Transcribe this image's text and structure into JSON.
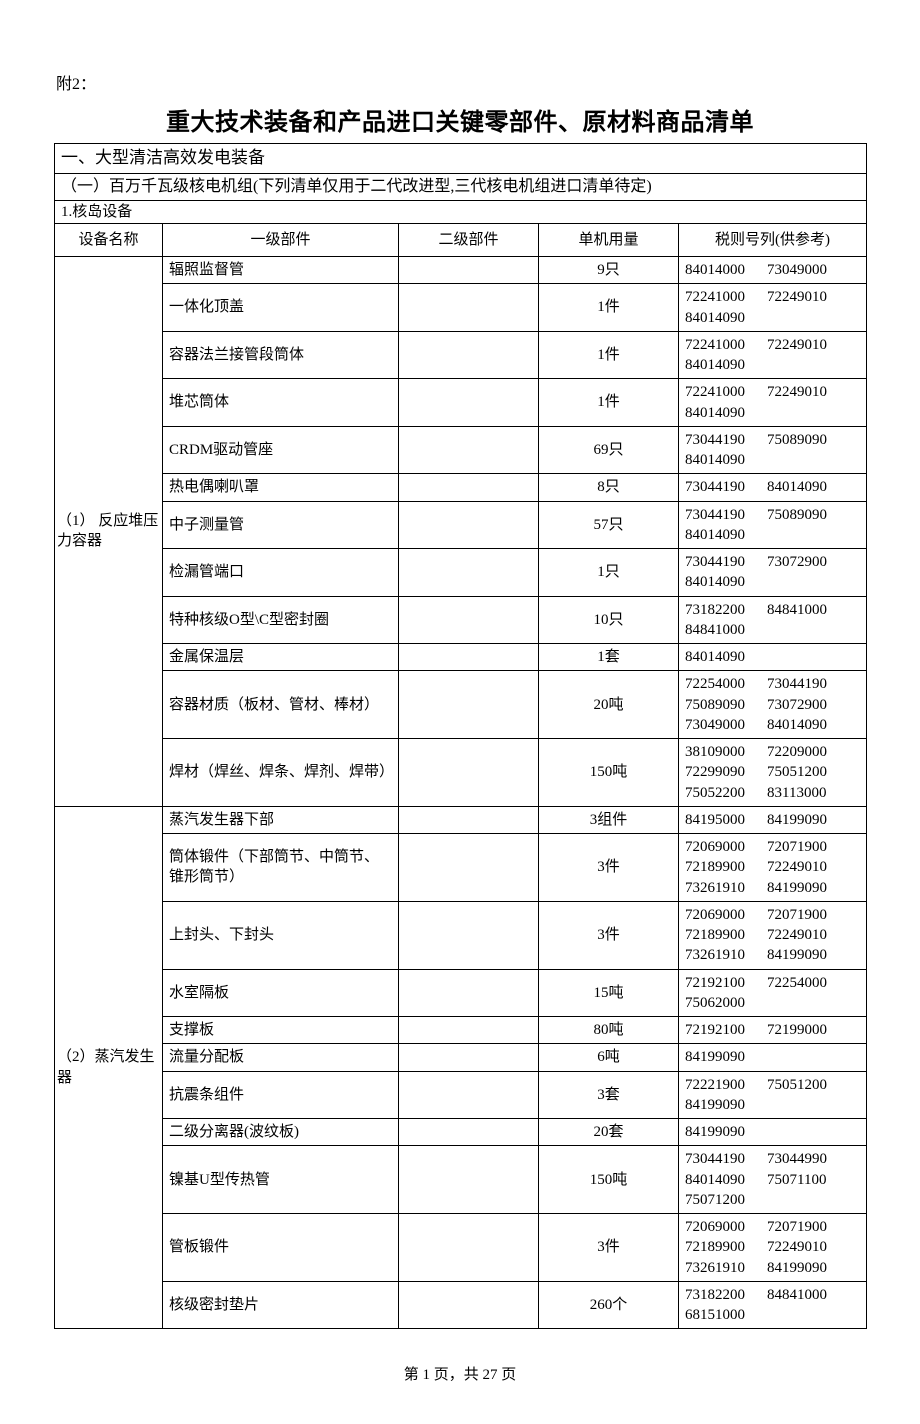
{
  "appendix_label": "附2：",
  "title": "重大技术装备和产品进口关键零部件、原材料商品清单",
  "section": "一、大型清洁高效发电装备",
  "subsection": "（一）百万千瓦级核电机组(下列清单仅用于二代改进型,三代核电机组进口清单待定)",
  "category": "1.核岛设备",
  "columns": {
    "c1": "设备名称",
    "c2": "一级部件",
    "c3": "二级部件",
    "c4": "单机用量",
    "c5": "税则号列(供参考)"
  },
  "groups": [
    {
      "equip_name": "（1）  反应堆压力容器",
      "rows": [
        {
          "part": "辐照监督管",
          "sub": "",
          "qty": "9只",
          "codes": [
            "84014000",
            "73049000"
          ]
        },
        {
          "part": "一体化顶盖",
          "sub": "",
          "qty": "1件",
          "codes": [
            "72241000",
            "72249010",
            "84014090"
          ]
        },
        {
          "part": "容器法兰接管段筒体",
          "sub": "",
          "qty": "1件",
          "codes": [
            "72241000",
            "72249010",
            "84014090"
          ]
        },
        {
          "part": "堆芯筒体",
          "sub": "",
          "qty": "1件",
          "codes": [
            "72241000",
            "72249010",
            "84014090"
          ]
        },
        {
          "part": "CRDM驱动管座",
          "sub": "",
          "qty": "69只",
          "codes": [
            "73044190",
            "75089090",
            "84014090"
          ]
        },
        {
          "part": "热电偶喇叭罩",
          "sub": "",
          "qty": "8只",
          "codes": [
            "73044190",
            "84014090"
          ]
        },
        {
          "part": "中子测量管",
          "sub": "",
          "qty": "57只",
          "codes": [
            "73044190",
            "75089090",
            "84014090"
          ]
        },
        {
          "part": "检漏管端口",
          "sub": "",
          "qty": "1只",
          "codes": [
            "73044190",
            "73072900",
            "84014090"
          ]
        },
        {
          "part": "特种核级O型\\C型密封圈",
          "sub": "",
          "qty": "10只",
          "codes": [
            "73182200",
            "84841000",
            "84841000"
          ]
        },
        {
          "part": "金属保温层",
          "sub": "",
          "qty": "1套",
          "codes": [
            "84014090"
          ]
        },
        {
          "part": "容器材质（板材、管材、棒材）",
          "sub": "",
          "qty": "20吨",
          "codes": [
            "72254000",
            "73044190",
            "75089090",
            "73072900",
            "73049000",
            "84014090"
          ]
        },
        {
          "part": "焊材（焊丝、焊条、焊剂、焊带）",
          "sub": "",
          "qty": "150吨",
          "codes": [
            "38109000",
            "72209000",
            "72299090",
            "75051200",
            "75052200",
            "83113000"
          ]
        }
      ]
    },
    {
      "equip_name": "（2）蒸汽发生器",
      "rows": [
        {
          "part": "蒸汽发生器下部",
          "sub": "",
          "qty": "3组件",
          "codes": [
            "84195000",
            "84199090"
          ]
        },
        {
          "part": "筒体锻件（下部筒节、中筒节、锥形筒节）",
          "sub": "",
          "qty": "3件",
          "codes": [
            "72069000",
            "72071900",
            "72189900",
            "72249010",
            "73261910",
            "84199090"
          ]
        },
        {
          "part": "上封头、下封头",
          "sub": "",
          "qty": "3件",
          "codes": [
            "72069000",
            "72071900",
            "72189900",
            "72249010",
            "73261910",
            "84199090"
          ]
        },
        {
          "part": "水室隔板",
          "sub": "",
          "qty": "15吨",
          "codes": [
            "72192100",
            "72254000",
            "75062000"
          ]
        },
        {
          "part": "支撑板",
          "sub": "",
          "qty": "80吨",
          "codes": [
            "72192100",
            "72199000"
          ]
        },
        {
          "part": "流量分配板",
          "sub": "",
          "qty": "6吨",
          "codes": [
            "84199090"
          ]
        },
        {
          "part": "抗震条组件",
          "sub": "",
          "qty": "3套",
          "codes": [
            "72221900",
            "75051200",
            "84199090"
          ]
        },
        {
          "part": "二级分离器(波纹板)",
          "sub": "",
          "qty": "20套",
          "codes": [
            "84199090"
          ]
        },
        {
          "part": "镍基U型传热管",
          "sub": "",
          "qty": "150吨",
          "codes": [
            "73044190",
            "73044990",
            "84014090",
            "75071100",
            "75071200"
          ]
        },
        {
          "part": "管板锻件",
          "sub": "",
          "qty": "3件",
          "codes": [
            "72069000",
            "72071900",
            "72189900",
            "72249010",
            "73261910",
            "84199090"
          ]
        },
        {
          "part": "核级密封垫片",
          "sub": "",
          "qty": "260个",
          "codes": [
            "73182200",
            "84841000",
            "68151000"
          ]
        }
      ]
    }
  ],
  "footer": "第 1 页，共 27 页"
}
